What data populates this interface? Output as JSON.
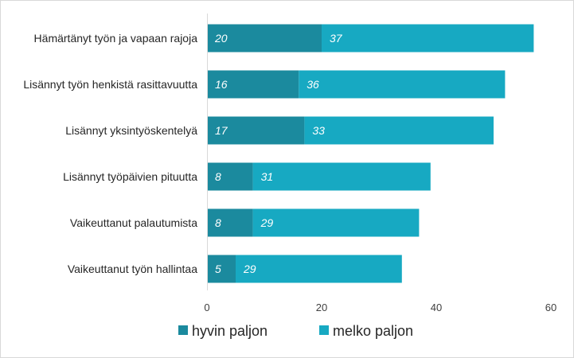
{
  "chart_data": {
    "type": "bar",
    "orientation": "horizontal",
    "stacked": true,
    "categories": [
      "Hämärtänyt työn ja vapaan rajoja",
      "Lisännyt työn henkistä rasittavuutta",
      "Lisännyt yksintyöskentelyä",
      "Lisännyt työpäivien pituutta",
      "Vaikeuttanut palautumista",
      "Vaikeuttanut työn hallintaa"
    ],
    "series": [
      {
        "name": "hyvin paljon",
        "values": [
          20,
          16,
          17,
          8,
          8,
          5
        ],
        "color": "#1b8a9e"
      },
      {
        "name": "melko paljon",
        "values": [
          37,
          36,
          33,
          31,
          29,
          29
        ],
        "color": "#17a9c2"
      }
    ],
    "x_ticks": [
      "0",
      "20",
      "40",
      "60"
    ],
    "xlim": [
      0,
      60
    ],
    "grid": false,
    "legend_position": "bottom",
    "title": "",
    "xlabel": "",
    "ylabel": ""
  }
}
